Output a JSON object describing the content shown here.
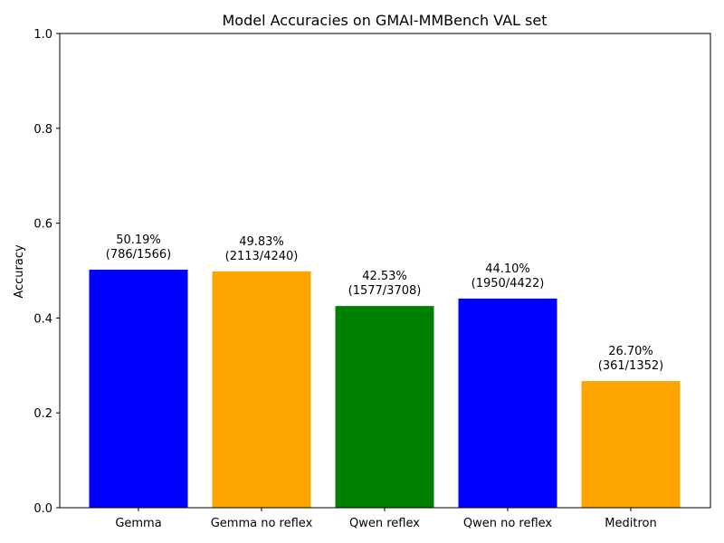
{
  "chart_data": {
    "type": "bar",
    "title": "Model Accuracies on GMAI-MMBench VAL set",
    "xlabel": "",
    "ylabel": "Accuracy",
    "ylim": [
      0,
      1.0
    ],
    "yticks": [
      "0.0",
      "0.2",
      "0.4",
      "0.6",
      "0.8",
      "1.0"
    ],
    "grid": false,
    "categories": [
      "Gemma",
      "Gemma no reflex",
      "Qwen reflex",
      "Qwen no reflex",
      "Meditron"
    ],
    "values": [
      0.5019,
      0.4983,
      0.4253,
      0.441,
      0.267
    ],
    "colors": [
      "#0000ff",
      "#ffa500",
      "#008000",
      "#0000ff",
      "#ffa500"
    ],
    "labels": [
      [
        "50.19%",
        "(786/1566)"
      ],
      [
        "49.83%",
        "(2113/4240)"
      ],
      [
        "42.53%",
        "(1577/3708)"
      ],
      [
        "44.10%",
        "(1950/4422)"
      ],
      [
        "26.70%",
        "(361/1352)"
      ]
    ]
  }
}
